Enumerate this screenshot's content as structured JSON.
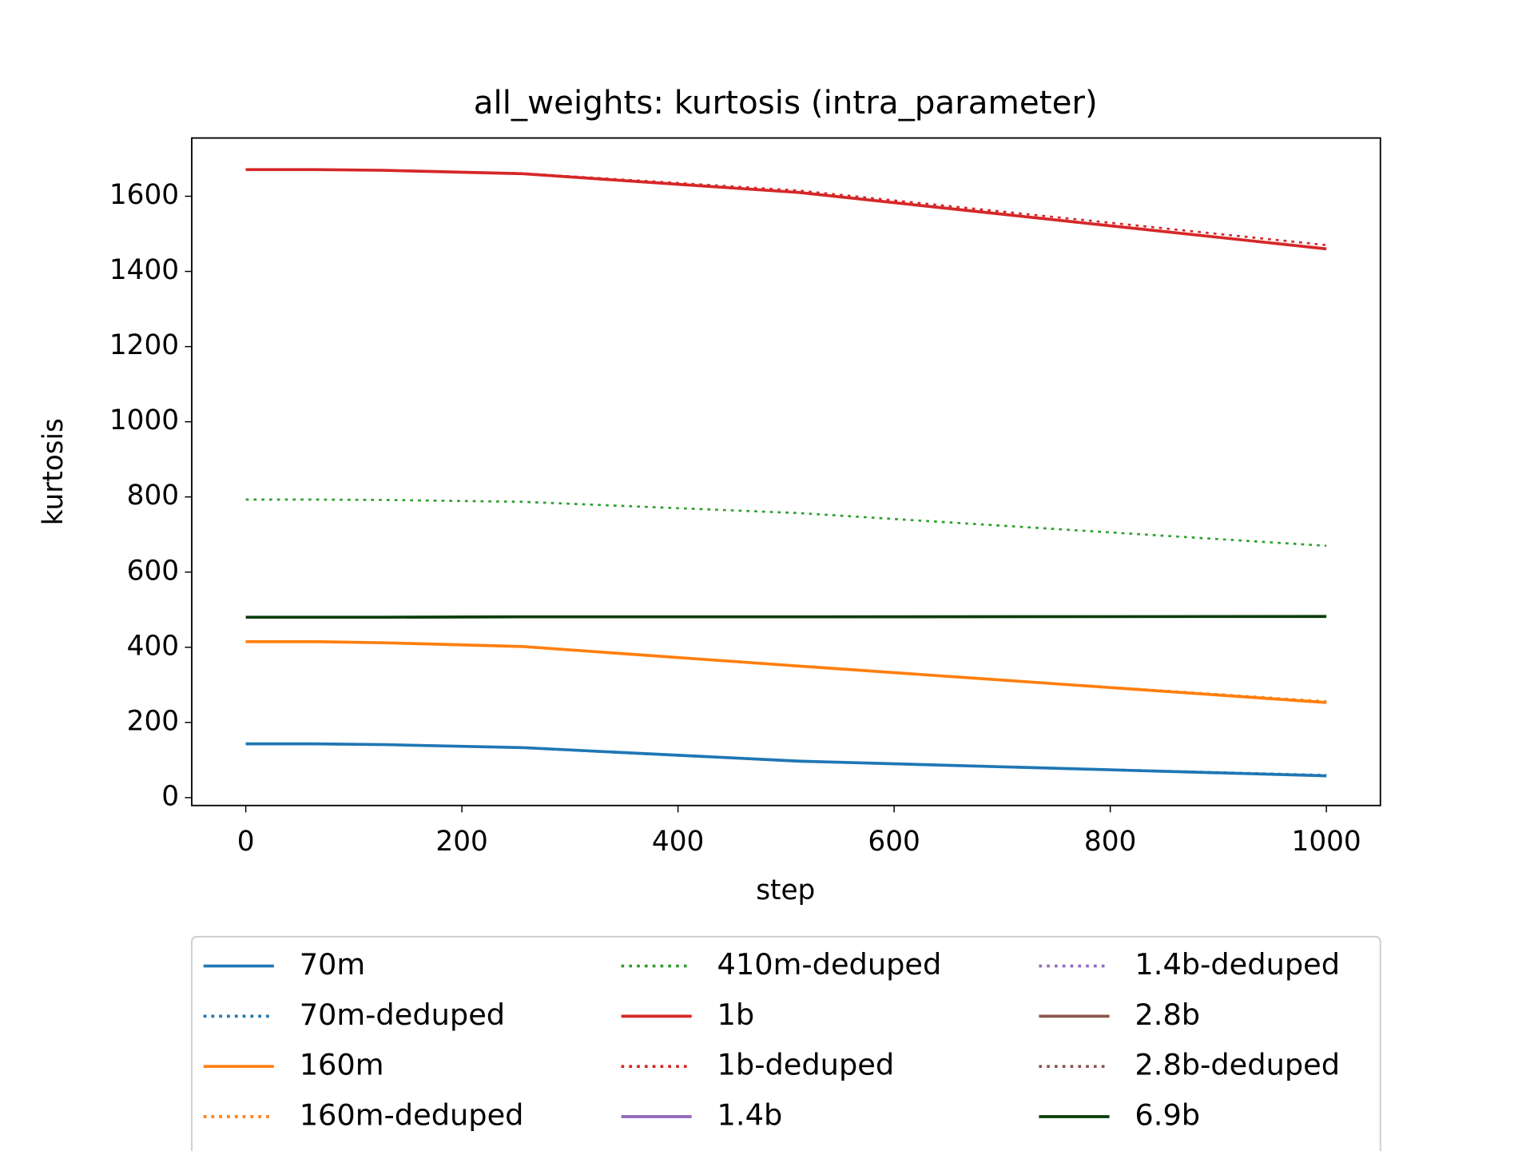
{
  "chart_data": {
    "type": "line",
    "title": "all_weights: kurtosis (intra_parameter)",
    "x_label": "step",
    "y_label": "kurtosis",
    "x": [
      0,
      64,
      128,
      256,
      512,
      1000
    ],
    "series": [
      {
        "name": "70m",
        "color": "#1f77b4",
        "style": "solid",
        "values": [
          143,
          143,
          141,
          133,
          97,
          58
        ]
      },
      {
        "name": "70m-deduped",
        "color": "#1f77b4",
        "style": "dotted",
        "values": [
          143,
          143,
          141,
          132,
          96,
          60
        ]
      },
      {
        "name": "160m",
        "color": "#ff7f0e",
        "style": "solid",
        "values": [
          415,
          415,
          412,
          402,
          350,
          253
        ]
      },
      {
        "name": "160m-deduped",
        "color": "#ff7f0e",
        "style": "dotted",
        "values": [
          415,
          415,
          412,
          401,
          349,
          256
        ]
      },
      {
        "name": "410m-deduped",
        "color": "#2ca02c",
        "style": "dotted",
        "values": [
          793,
          793,
          792,
          787,
          757,
          670
        ]
      },
      {
        "name": "1b",
        "color": "#d62728",
        "style": "solid",
        "values": [
          1671,
          1671,
          1669,
          1660,
          1610,
          1460
        ]
      },
      {
        "name": "1b-deduped",
        "color": "#d62728",
        "style": "dotted",
        "values": [
          1671,
          1671,
          1669,
          1661,
          1615,
          1470
        ]
      },
      {
        "name": "1.4b",
        "color": "#9467bd",
        "style": "solid",
        "values": [
          null,
          null,
          null,
          null,
          null,
          null
        ]
      },
      {
        "name": "1.4b-deduped",
        "color": "#9467bd",
        "style": "dotted",
        "values": [
          null,
          null,
          null,
          null,
          null,
          null
        ]
      },
      {
        "name": "2.8b",
        "color": "#8c564b",
        "style": "solid",
        "values": [
          null,
          null,
          null,
          null,
          null,
          null
        ]
      },
      {
        "name": "2.8b-deduped",
        "color": "#8c564b",
        "style": "dotted",
        "values": [
          null,
          null,
          null,
          null,
          null,
          null
        ]
      },
      {
        "name": "6.9b",
        "color": "#0b3d0b",
        "style": "solid",
        "values": [
          480,
          480,
          480,
          481,
          481,
          482
        ]
      }
    ],
    "xlim": [
      -50,
      1050
    ],
    "xticks": [
      0,
      200,
      400,
      600,
      800,
      1000
    ],
    "ylim": [
      -21,
      1755
    ],
    "yticks": [
      0,
      200,
      400,
      600,
      800,
      1000,
      1200,
      1400,
      1600
    ],
    "grid": false,
    "legend": "below"
  }
}
